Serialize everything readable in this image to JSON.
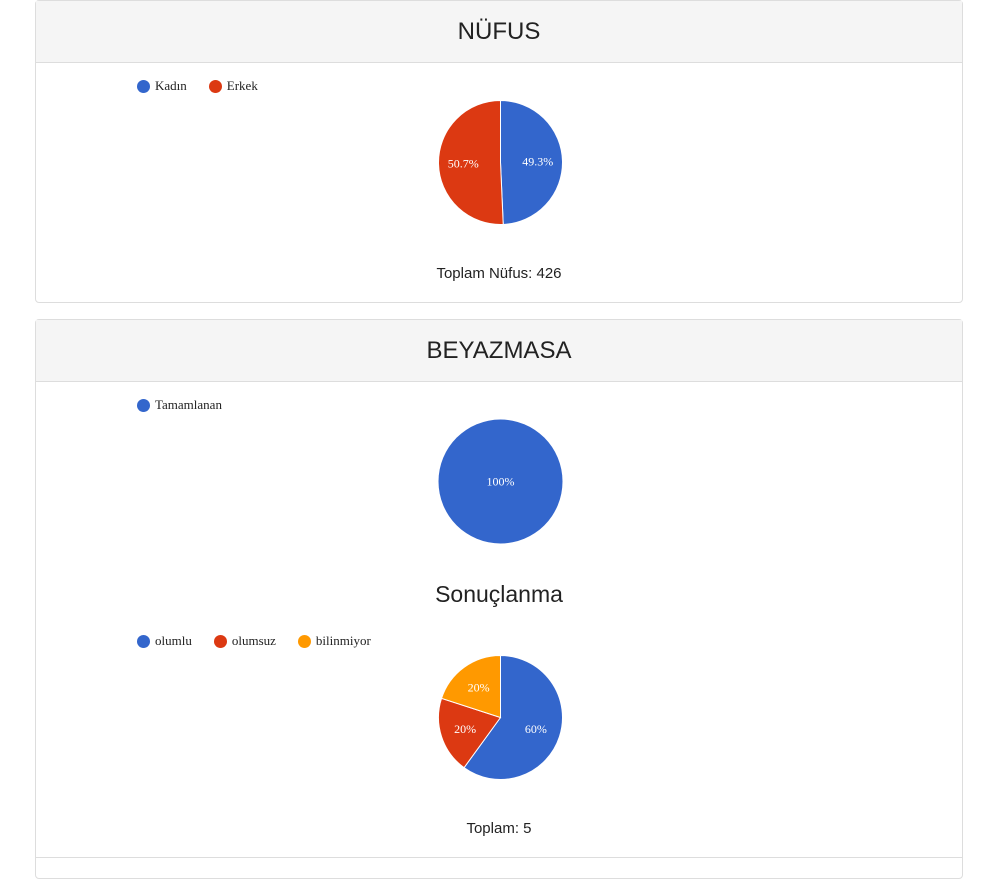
{
  "nufus": {
    "title": "NÜFUS",
    "total_label": "Toplam Nüfus: 426"
  },
  "beyazmasa": {
    "title": "BEYAZMASA",
    "subtitle": "Sonuçlanma",
    "total_label": "Toplam: 5"
  },
  "chart_data": [
    {
      "type": "pie",
      "categories": [
        "Kadın",
        "Erkek"
      ],
      "values": [
        49.3,
        50.7
      ],
      "labels": [
        "49.3%",
        "50.7%"
      ],
      "colors": [
        "#3366cc",
        "#dc3912"
      ],
      "legend": "top-left"
    },
    {
      "type": "pie",
      "categories": [
        "Tamamlanan"
      ],
      "values": [
        100
      ],
      "labels": [
        "100%"
      ],
      "colors": [
        "#3366cc"
      ],
      "legend": "top-left"
    },
    {
      "type": "pie",
      "title": "Sonuçlanma",
      "categories": [
        "olumlu",
        "olumsuz",
        "bilinmiyor"
      ],
      "values": [
        60,
        20,
        20
      ],
      "labels": [
        "60%",
        "20%",
        "20%"
      ],
      "colors": [
        "#3366cc",
        "#dc3912",
        "#ff9900"
      ],
      "legend": "top-left"
    }
  ]
}
